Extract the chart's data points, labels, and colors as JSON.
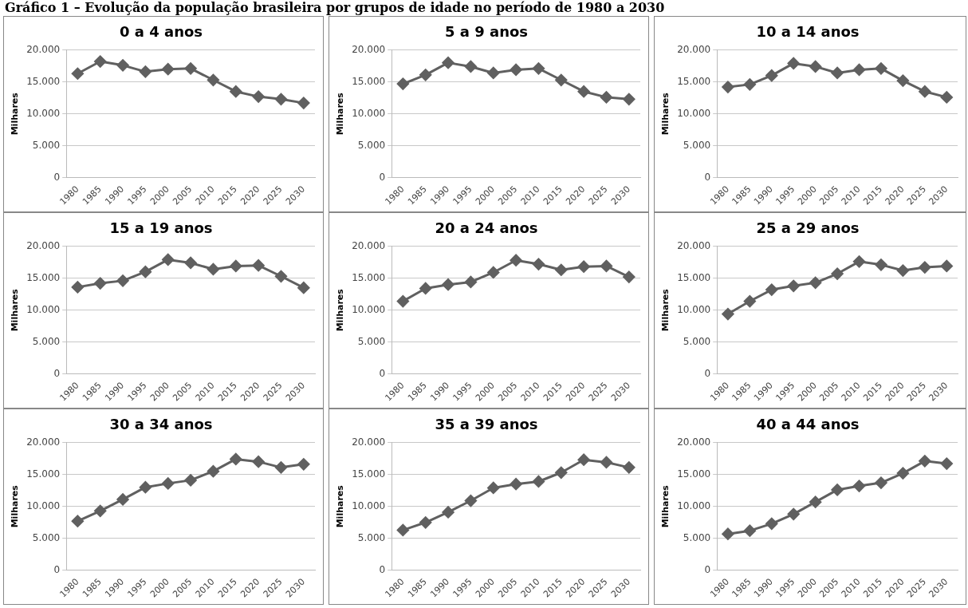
{
  "chart_data": [
    {
      "type": "line",
      "title": "0 a 4 anos",
      "ylabel": "Milhares",
      "annotations": [
        "Gráfico 1 – Evolução da população brasileira por grupos de idade no período de 1980 a 2030"
      ],
      "categories": [
        "1980",
        "1985",
        "1990",
        "1995",
        "2000",
        "2005",
        "2010",
        "2015",
        "2020",
        "2025",
        "2030"
      ],
      "series": [
        {
          "color": "#606060",
          "values": [
            16300,
            18200,
            17600,
            16600,
            17000,
            17100,
            15300,
            13500,
            12700,
            12300,
            11700
          ]
        }
      ],
      "ylim": [
        0,
        20000
      ],
      "yticks": [
        {
          "value": 0,
          "label": "0"
        },
        {
          "value": 5000,
          "label": "5.000"
        },
        {
          "value": 10000,
          "label": "10.000"
        },
        {
          "value": 15000,
          "label": "15.000"
        },
        {
          "value": 20000,
          "label": "20.000"
        }
      ],
      "grid": "y",
      "marker": "diamond",
      "line_style": "solid",
      "legend": false
    },
    {
      "type": "line",
      "title": "5 a 9 anos",
      "ylabel": "Milhares",
      "categories": [
        "1980",
        "1985",
        "1990",
        "1995",
        "2000",
        "2005",
        "2010",
        "2015",
        "2020",
        "2025",
        "2030"
      ],
      "series": [
        {
          "color": "#606060",
          "values": [
            14700,
            16100,
            18000,
            17400,
            16400,
            16900,
            17100,
            15300,
            13500,
            12600,
            12300
          ]
        }
      ],
      "ylim": [
        0,
        20000
      ],
      "yticks": [
        {
          "value": 0,
          "label": "0"
        },
        {
          "value": 5000,
          "label": "5.000"
        },
        {
          "value": 10000,
          "label": "10.000"
        },
        {
          "value": 15000,
          "label": "15.000"
        },
        {
          "value": 20000,
          "label": "20.000"
        }
      ],
      "grid": "y",
      "marker": "diamond",
      "line_style": "solid",
      "legend": false
    },
    {
      "type": "line",
      "title": "10 a 14 anos",
      "ylabel": "Milhares",
      "categories": [
        "1980",
        "1985",
        "1990",
        "1995",
        "2000",
        "2005",
        "2010",
        "2015",
        "2020",
        "2025",
        "2030"
      ],
      "series": [
        {
          "color": "#606060",
          "values": [
            14200,
            14600,
            16000,
            17900,
            17400,
            16400,
            16900,
            17100,
            15200,
            13500,
            12600
          ]
        }
      ],
      "ylim": [
        0,
        20000
      ],
      "yticks": [
        {
          "value": 0,
          "label": "0"
        },
        {
          "value": 5000,
          "label": "5.000"
        },
        {
          "value": 10000,
          "label": "10.000"
        },
        {
          "value": 15000,
          "label": "15.000"
        },
        {
          "value": 20000,
          "label": "20.000"
        }
      ],
      "grid": "y",
      "marker": "diamond",
      "line_style": "solid",
      "legend": false
    },
    {
      "type": "line",
      "title": "15 a 19 anos",
      "ylabel": "Milhares",
      "categories": [
        "1980",
        "1985",
        "1990",
        "1995",
        "2000",
        "2005",
        "2010",
        "2015",
        "2020",
        "2025",
        "2030"
      ],
      "series": [
        {
          "color": "#606060",
          "values": [
            13600,
            14200,
            14600,
            16000,
            17900,
            17400,
            16400,
            16900,
            17000,
            15300,
            13500
          ]
        }
      ],
      "ylim": [
        0,
        20000
      ],
      "yticks": [
        {
          "value": 0,
          "label": "0"
        },
        {
          "value": 5000,
          "label": "5.000"
        },
        {
          "value": 10000,
          "label": "10.000"
        },
        {
          "value": 15000,
          "label": "15.000"
        },
        {
          "value": 20000,
          "label": "20.000"
        }
      ],
      "grid": "y",
      "marker": "diamond",
      "line_style": "solid",
      "legend": false
    },
    {
      "type": "line",
      "title": "20 a 24 anos",
      "ylabel": "Milhares",
      "categories": [
        "1980",
        "1985",
        "1990",
        "1995",
        "2000",
        "2005",
        "2010",
        "2015",
        "2020",
        "2025",
        "2030"
      ],
      "series": [
        {
          "color": "#606060",
          "values": [
            11400,
            13400,
            14000,
            14400,
            15900,
            17800,
            17200,
            16300,
            16800,
            16900,
            15200
          ]
        }
      ],
      "ylim": [
        0,
        20000
      ],
      "yticks": [
        {
          "value": 0,
          "label": "0"
        },
        {
          "value": 5000,
          "label": "5.000"
        },
        {
          "value": 10000,
          "label": "10.000"
        },
        {
          "value": 15000,
          "label": "15.000"
        },
        {
          "value": 20000,
          "label": "20.000"
        }
      ],
      "grid": "y",
      "marker": "diamond",
      "line_style": "solid",
      "legend": false
    },
    {
      "type": "line",
      "title": "25 a 29 anos",
      "ylabel": "Milhares",
      "categories": [
        "1980",
        "1985",
        "1990",
        "1995",
        "2000",
        "2005",
        "2010",
        "2015",
        "2020",
        "2025",
        "2030"
      ],
      "series": [
        {
          "color": "#606060",
          "values": [
            9400,
            11400,
            13200,
            13800,
            14300,
            15700,
            17600,
            17100,
            16200,
            16700,
            16900
          ]
        }
      ],
      "ylim": [
        0,
        20000
      ],
      "yticks": [
        {
          "value": 0,
          "label": "0"
        },
        {
          "value": 5000,
          "label": "5.000"
        },
        {
          "value": 10000,
          "label": "10.000"
        },
        {
          "value": 15000,
          "label": "15.000"
        },
        {
          "value": 20000,
          "label": "20.000"
        }
      ],
      "grid": "y",
      "marker": "diamond",
      "line_style": "solid",
      "legend": false
    },
    {
      "type": "line",
      "title": "30 a 34 anos",
      "ylabel": "Milhares",
      "categories": [
        "1980",
        "1985",
        "1990",
        "1995",
        "2000",
        "2005",
        "2010",
        "2015",
        "2020",
        "2025",
        "2030"
      ],
      "series": [
        {
          "color": "#606060",
          "values": [
            7700,
            9300,
            11100,
            13000,
            13600,
            14100,
            15500,
            17400,
            17000,
            16100,
            16600
          ]
        }
      ],
      "ylim": [
        0,
        20000
      ],
      "yticks": [
        {
          "value": 0,
          "label": "0"
        },
        {
          "value": 5000,
          "label": "5.000"
        },
        {
          "value": 10000,
          "label": "10.000"
        },
        {
          "value": 15000,
          "label": "15.000"
        },
        {
          "value": 20000,
          "label": "20.000"
        }
      ],
      "grid": "y",
      "marker": "diamond",
      "line_style": "solid",
      "legend": false
    },
    {
      "type": "line",
      "title": "35 a 39 anos",
      "ylabel": "Milhares",
      "categories": [
        "1980",
        "1985",
        "1990",
        "1995",
        "2000",
        "2005",
        "2010",
        "2015",
        "2020",
        "2025",
        "2030"
      ],
      "series": [
        {
          "color": "#606060",
          "values": [
            6300,
            7500,
            9100,
            10900,
            12900,
            13500,
            13900,
            15300,
            17300,
            16900,
            16100
          ]
        }
      ],
      "ylim": [
        0,
        20000
      ],
      "yticks": [
        {
          "value": 0,
          "label": "0"
        },
        {
          "value": 5000,
          "label": "5.000"
        },
        {
          "value": 10000,
          "label": "10.000"
        },
        {
          "value": 15000,
          "label": "15.000"
        },
        {
          "value": 20000,
          "label": "20.000"
        }
      ],
      "grid": "y",
      "marker": "diamond",
      "line_style": "solid",
      "legend": false
    },
    {
      "type": "line",
      "title": "40 a 44 anos",
      "ylabel": "Milhares",
      "categories": [
        "1980",
        "1985",
        "1990",
        "1995",
        "2000",
        "2005",
        "2010",
        "2015",
        "2020",
        "2025",
        "2030"
      ],
      "series": [
        {
          "color": "#606060",
          "values": [
            5700,
            6200,
            7300,
            8800,
            10700,
            12600,
            13200,
            13700,
            15200,
            17100,
            16700
          ]
        }
      ],
      "ylim": [
        0,
        20000
      ],
      "yticks": [
        {
          "value": 0,
          "label": "0"
        },
        {
          "value": 5000,
          "label": "5.000"
        },
        {
          "value": 10000,
          "label": "10.000"
        },
        {
          "value": 15000,
          "label": "15.000"
        },
        {
          "value": 20000,
          "label": "20.000"
        }
      ],
      "grid": "y",
      "marker": "diamond",
      "line_style": "solid",
      "legend": false
    }
  ]
}
